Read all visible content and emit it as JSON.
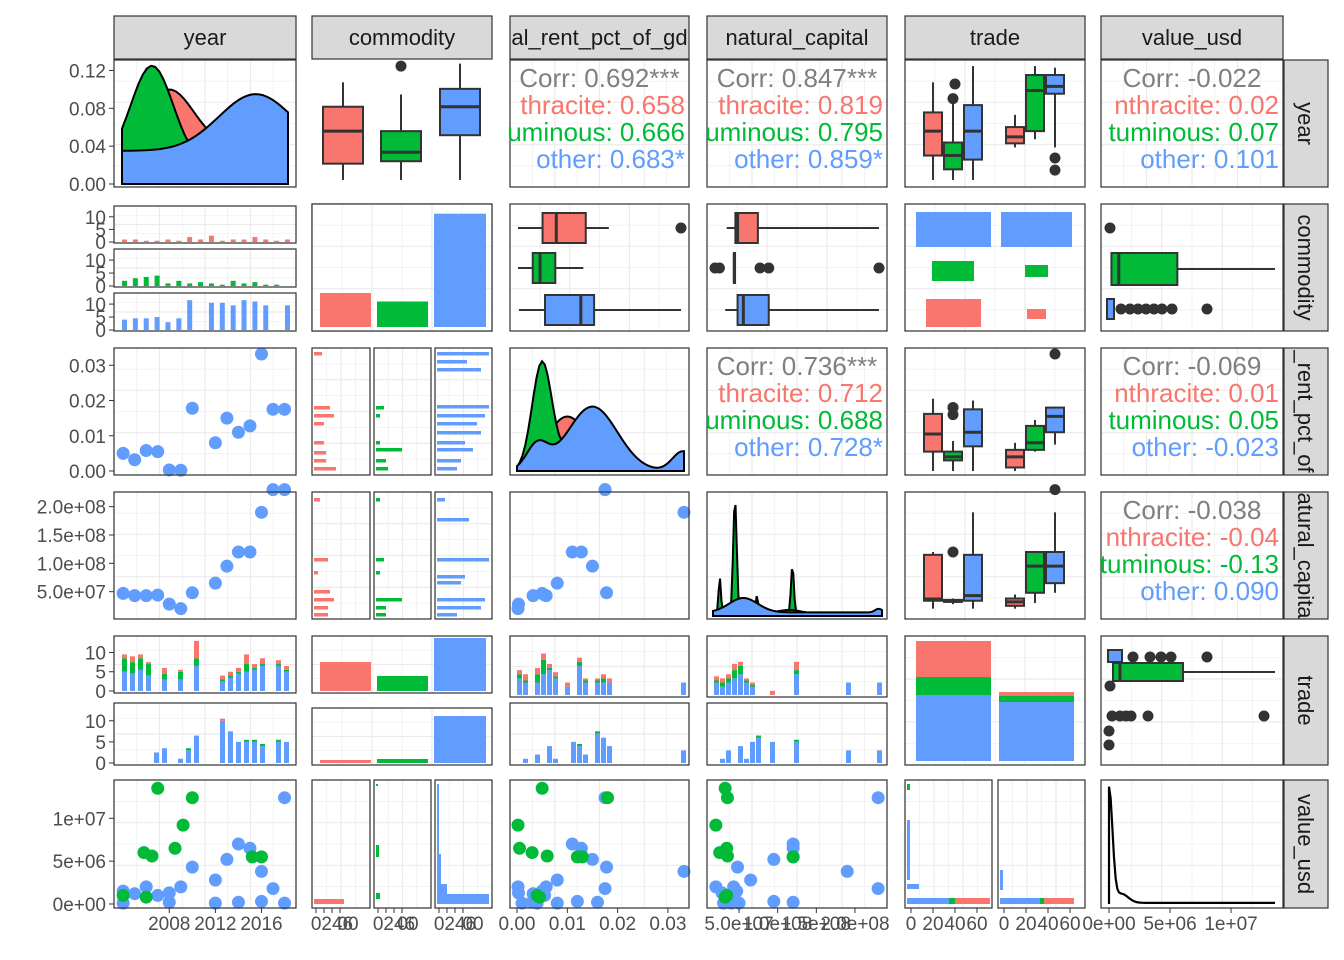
{
  "colors": {
    "anthracite": "#F8766D",
    "bituminous": "#00BA38",
    "other": "#619CFF",
    "overall": "#7f7f7f"
  },
  "chart_data": {
    "type": "pairs",
    "columns": [
      "year",
      "commodity",
      "total_rent_pct_of_gdp",
      "natural_capital",
      "trade",
      "value_usd"
    ],
    "column_labels": [
      "year",
      "commodity",
      "al_rent_pct_of_gd",
      "natural_capital",
      "trade",
      "value_usd"
    ],
    "row_labels": [
      "year",
      "commodity",
      "_rent_pct_of",
      "atural_capita",
      "trade",
      "value_usd"
    ],
    "groups": [
      "anthracite",
      "bituminous",
      "other"
    ],
    "correlations": [
      {
        "row": 0,
        "col": 2,
        "lines": [
          "Corr: 0.692***",
          "thracite: 0.658",
          "uminous: 0.666",
          "other: 0.683*"
        ]
      },
      {
        "row": 0,
        "col": 3,
        "lines": [
          "Corr: 0.847***",
          "thracite: 0.819",
          "uminous: 0.795",
          "other: 0.859*"
        ]
      },
      {
        "row": 0,
        "col": 5,
        "lines": [
          "Corr: -0.022",
          "nthracite: 0.02",
          "tuminous: 0.07",
          "other: 0.101"
        ]
      },
      {
        "row": 2,
        "col": 3,
        "lines": [
          "Corr: 0.736***",
          "thracite: 0.712",
          "uminous: 0.688",
          "other: 0.728*"
        ]
      },
      {
        "row": 2,
        "col": 5,
        "lines": [
          "Corr: -0.069",
          "nthracite: 0.01",
          "tuminous: 0.05",
          "other: -0.023"
        ]
      },
      {
        "row": 3,
        "col": 5,
        "lines": [
          "Corr: -0.038",
          "nthracite: -0.04",
          "tuminous: -0.13",
          "other: 0.090"
        ]
      }
    ],
    "axes": {
      "year": {
        "ticks": [
          "2008",
          "2012",
          "2016"
        ],
        "density_ticks": [
          "0.00",
          "0.04",
          "0.08",
          "0.12"
        ]
      },
      "commodity_counts": {
        "ticks": [
          "0",
          "5",
          "10"
        ]
      },
      "total_rent_pct_of_gdp": {
        "ticks": [
          "0.00",
          "0.01",
          "0.02",
          "0.03"
        ]
      },
      "natural_capital": {
        "ticks": [
          "5.0e+07",
          "1.0e+08",
          "1.5e+08",
          "2.0e+08"
        ]
      },
      "trade_counts": {
        "ticks": [
          "0",
          "5",
          "10"
        ]
      },
      "value_usd": {
        "ticks": [
          "0e+00",
          "5e+06",
          "1e+07"
        ]
      },
      "bottom_x_labels": [
        "2008",
        "2012",
        "2016",
        "0246",
        "0246",
        "0246",
        "0.00",
        "0.01",
        "0.02",
        "0.03",
        "5.0e+07",
        "1.0e+08",
        "1.5e+08",
        "2.0e+08",
        "0",
        "20",
        "40",
        "60",
        "0",
        "20",
        "40",
        "60",
        "0e+00",
        "5e+06",
        "1e+07"
      ]
    },
    "year_scatter": {
      "years": [
        2004,
        2005,
        2006,
        2007,
        2008,
        2009,
        2010,
        2012,
        2013,
        2014,
        2015,
        2016,
        2017,
        2018
      ],
      "rent": [
        0.005,
        0.0032,
        0.0058,
        0.0055,
        0.0003,
        0.0002,
        0.0178,
        0.008,
        0.015,
        0.011,
        0.0128,
        0.0332,
        0.0175,
        0.0175
      ],
      "natural_capital": [
        47000000.0,
        43000000.0,
        43000000.0,
        44000000.0,
        28000000.0,
        20000000.0,
        48000000.0,
        65000000.0,
        95000000.0,
        120000000.0,
        120000000.0,
        190000000.0,
        230000000.0,
        230000000.0
      ]
    },
    "value_points": {
      "bituminous": [
        [
          2007,
          13500000
        ],
        [
          2006.5,
          5600000
        ],
        [
          2005.8,
          6000000
        ],
        [
          2008.5,
          6500000
        ],
        [
          2009.2,
          9200000
        ],
        [
          2010,
          12400000
        ],
        [
          2015.2,
          5500000
        ],
        [
          2016,
          5500000
        ],
        [
          2004,
          1000000
        ],
        [
          2006,
          800000
        ]
      ],
      "other": [
        [
          2004,
          1500000
        ],
        [
          2005,
          1200000
        ],
        [
          2006,
          2000000
        ],
        [
          2007,
          1000000
        ],
        [
          2008,
          1300000
        ],
        [
          2009,
          2000000
        ],
        [
          2010,
          4300000
        ],
        [
          2012,
          2800000
        ],
        [
          2013,
          5200000
        ],
        [
          2014,
          7000000
        ],
        [
          2015,
          6500000
        ],
        [
          2016,
          3800000
        ],
        [
          2017,
          1800000
        ],
        [
          2018,
          12400000
        ],
        [
          2008,
          200000
        ],
        [
          2012,
          100000
        ],
        [
          2016,
          300000
        ],
        [
          2004,
          100000
        ],
        [
          2014,
          200000
        ],
        [
          2018,
          100000
        ]
      ]
    }
  }
}
